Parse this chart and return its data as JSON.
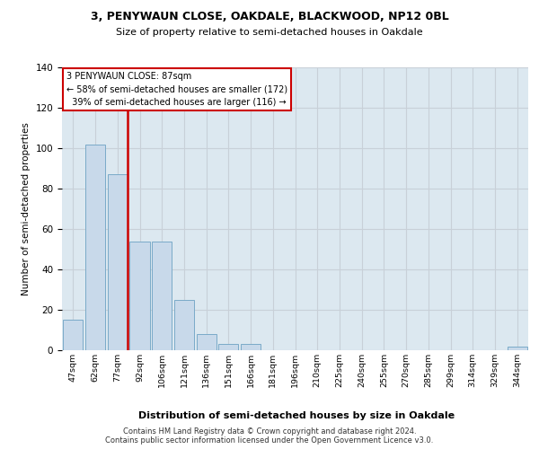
{
  "title1": "3, PENYWAUN CLOSE, OAKDALE, BLACKWOOD, NP12 0BL",
  "title2": "Size of property relative to semi-detached houses in Oakdale",
  "xlabel": "Distribution of semi-detached houses by size in Oakdale",
  "ylabel": "Number of semi-detached properties",
  "categories": [
    "47sqm",
    "62sqm",
    "77sqm",
    "92sqm",
    "106sqm",
    "121sqm",
    "136sqm",
    "151sqm",
    "166sqm",
    "181sqm",
    "196sqm",
    "210sqm",
    "225sqm",
    "240sqm",
    "255sqm",
    "270sqm",
    "285sqm",
    "299sqm",
    "314sqm",
    "329sqm",
    "344sqm"
  ],
  "values": [
    15,
    102,
    87,
    54,
    54,
    25,
    8,
    3,
    3,
    0,
    0,
    0,
    0,
    0,
    0,
    0,
    0,
    0,
    0,
    0,
    2
  ],
  "bar_color": "#c8d9ea",
  "bar_edge_color": "#7aaac8",
  "vline_x_index": 2,
  "vline_color": "#cc0000",
  "annotation_box_color": "#cc0000",
  "property_label": "3 PENYWAUN CLOSE: 87sqm",
  "pct_smaller": 58,
  "pct_smaller_count": 172,
  "pct_larger": 39,
  "pct_larger_count": 116,
  "ylim": [
    0,
    140
  ],
  "yticks": [
    0,
    20,
    40,
    60,
    80,
    100,
    120,
    140
  ],
  "grid_color": "#c8d0d8",
  "bg_color": "#dce8f0",
  "footer1": "Contains HM Land Registry data © Crown copyright and database right 2024.",
  "footer2": "Contains public sector information licensed under the Open Government Licence v3.0."
}
